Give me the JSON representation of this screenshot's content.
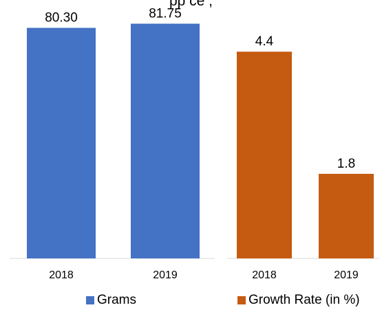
{
  "title_fragment": "pp ce ,",
  "chart_data": [
    {
      "type": "bar",
      "categories": [
        "2018",
        "2019"
      ],
      "series": [
        {
          "name": "Grams",
          "values": [
            80.3,
            81.75
          ],
          "color": "#4472C4"
        }
      ],
      "value_labels": [
        "80.30",
        "81.75"
      ],
      "ylim": [
        0,
        90
      ],
      "grid": false
    },
    {
      "type": "bar",
      "categories": [
        "2018",
        "2019"
      ],
      "series": [
        {
          "name": "Growth Rate (in %)",
          "values": [
            4.4,
            1.8
          ],
          "color": "#C55A11"
        }
      ],
      "value_labels": [
        "4.4",
        "1.8"
      ],
      "ylim": [
        0,
        5.5
      ],
      "grid": false
    }
  ]
}
